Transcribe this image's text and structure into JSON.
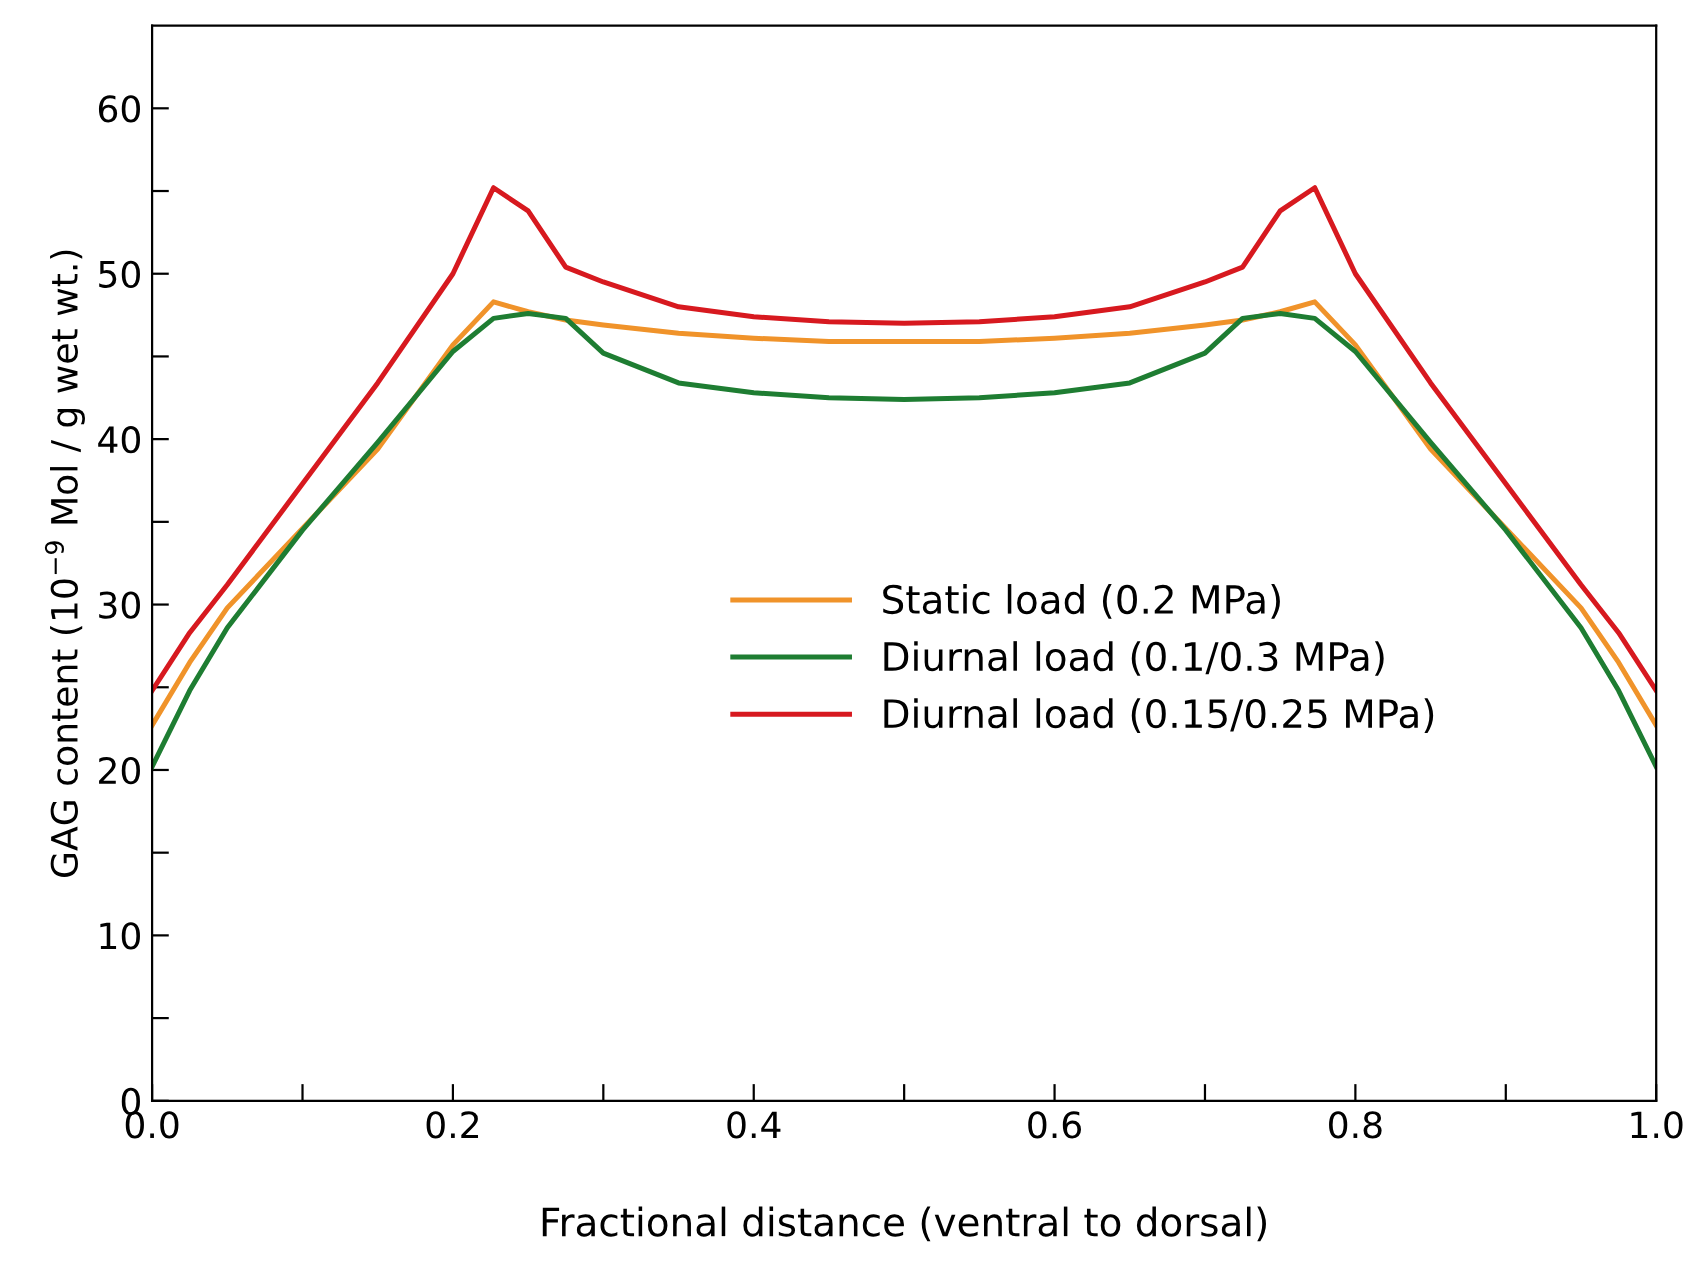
{
  "chart_data": {
    "type": "line",
    "xlabel": "Fractional distance (ventral to dorsal)",
    "ylabel": "GAG content (10$^{−9}$ Mol / g wet wt.)",
    "x": [
      0,
      0.025,
      0.05,
      0.1,
      0.15,
      0.2,
      0.227,
      0.25,
      0.275,
      0.3,
      0.35,
      0.4,
      0.45,
      0.5,
      0.55,
      0.6,
      0.65,
      0.7,
      0.725,
      0.75,
      0.773,
      0.8,
      0.85,
      0.9,
      0.95,
      0.975,
      1.0
    ],
    "series": [
      {
        "name": "Static load (0.2 MPa)",
        "color": "#f0932a",
        "values": [
          22.7,
          26.5,
          29.8,
          34.6,
          39.4,
          45.7,
          48.3,
          47.7,
          47.2,
          46.9,
          46.4,
          46.1,
          45.9,
          45.9,
          45.9,
          46.1,
          46.4,
          46.9,
          47.2,
          47.7,
          48.3,
          45.7,
          39.4,
          34.6,
          29.8,
          26.5,
          22.7
        ]
      },
      {
        "name": "Diurnal load (0.1/0.3 MPa)",
        "color": "#1e7d32",
        "values": [
          20.2,
          24.8,
          28.6,
          34.5,
          39.8,
          45.3,
          47.3,
          47.6,
          47.3,
          45.2,
          43.4,
          42.8,
          42.5,
          42.4,
          42.5,
          42.8,
          43.4,
          45.2,
          47.3,
          47.6,
          47.3,
          45.3,
          39.8,
          34.5,
          28.6,
          24.8,
          20.2
        ]
      },
      {
        "name": "Diurnal load (0.15/0.25 MPa)",
        "color": "#d7191f",
        "values": [
          24.8,
          28.3,
          31.2,
          37.3,
          43.4,
          50.0,
          55.2,
          53.8,
          50.4,
          49.5,
          48.0,
          47.4,
          47.1,
          47.0,
          47.1,
          47.4,
          48.0,
          49.5,
          50.4,
          53.8,
          55.2,
          50.0,
          43.4,
          37.3,
          31.2,
          28.3,
          24.8
        ]
      }
    ],
    "xlim": [
      0,
      1.0
    ],
    "xticks": [
      {
        "value": 0,
        "label": "0.0"
      },
      {
        "value": 0.1,
        "label": null
      },
      0.2,
      {
        "value": 0.3,
        "label": null
      },
      0.4,
      {
        "value": 0.5,
        "label": null
      },
      0.6,
      {
        "value": 0.7,
        "label": null
      },
      0.8,
      {
        "value": 0.9,
        "label": null
      },
      {
        "value": 1.0,
        "label": "1.0"
      }
    ],
    "ylim": [
      0,
      65
    ],
    "yticks": [
      0,
      {
        "value": 5,
        "label": null
      },
      10,
      {
        "value": 15,
        "label": null
      },
      20,
      {
        "value": 25,
        "label": null
      },
      30,
      {
        "value": 35,
        "label": null
      },
      40,
      {
        "value": 45,
        "label": null
      },
      50,
      {
        "value": 55,
        "label": null
      },
      60
    ],
    "grid": false,
    "legend": "center",
    "marker": "none",
    "line_style": "solid"
  }
}
